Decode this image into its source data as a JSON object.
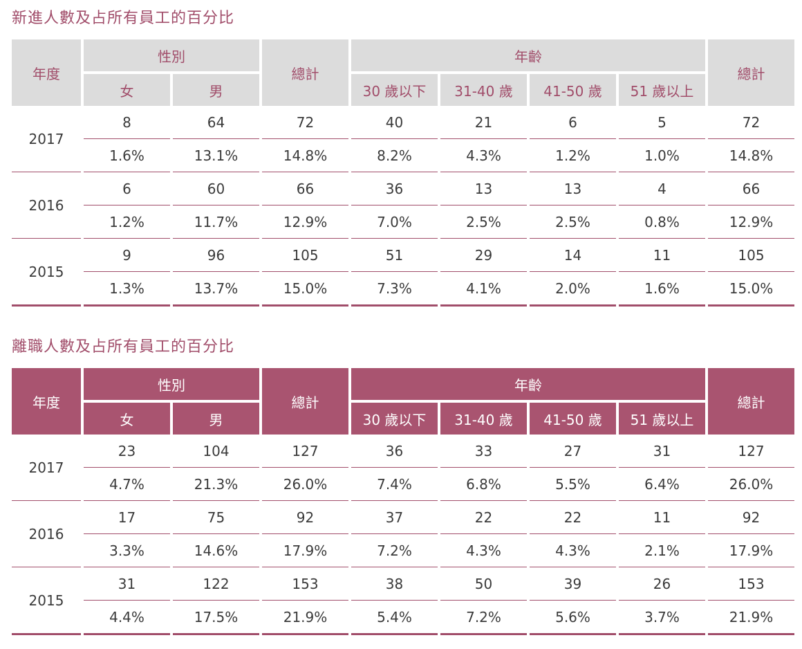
{
  "tables": [
    {
      "title": "新進人數及占所有員工的百分比",
      "headers": {
        "year": "年度",
        "gender": "性別",
        "female": "女",
        "male": "男",
        "total": "總計",
        "age": "年齡",
        "age_groups": [
          "30 歲以下",
          "31-40 歲",
          "41-50 歲",
          "51 歲以上"
        ]
      },
      "rows": [
        {
          "year": "2017",
          "counts": [
            "8",
            "64",
            "72",
            "40",
            "21",
            "6",
            "5",
            "72"
          ],
          "percents": [
            "1.6%",
            "13.1%",
            "14.8%",
            "8.2%",
            "4.3%",
            "1.2%",
            "1.0%",
            "14.8%"
          ]
        },
        {
          "year": "2016",
          "counts": [
            "6",
            "60",
            "66",
            "36",
            "13",
            "13",
            "4",
            "66"
          ],
          "percents": [
            "1.2%",
            "11.7%",
            "12.9%",
            "7.0%",
            "2.5%",
            "2.5%",
            "0.8%",
            "12.9%"
          ]
        },
        {
          "year": "2015",
          "counts": [
            "9",
            "96",
            "105",
            "51",
            "29",
            "14",
            "11",
            "105"
          ],
          "percents": [
            "1.3%",
            "13.7%",
            "15.0%",
            "7.3%",
            "4.1%",
            "2.0%",
            "1.6%",
            "15.0%"
          ]
        }
      ]
    },
    {
      "title": "離職人數及占所有員工的百分比",
      "headers": {
        "year": "年度",
        "gender": "性別",
        "female": "女",
        "male": "男",
        "total": "總計",
        "age": "年齡",
        "age_groups": [
          "30 歲以下",
          "31-40 歲",
          "41-50 歲",
          "51 歲以上"
        ]
      },
      "rows": [
        {
          "year": "2017",
          "counts": [
            "23",
            "104",
            "127",
            "36",
            "33",
            "27",
            "31",
            "127"
          ],
          "percents": [
            "4.7%",
            "21.3%",
            "26.0%",
            "7.4%",
            "6.8%",
            "5.5%",
            "6.4%",
            "26.0%"
          ]
        },
        {
          "year": "2016",
          "counts": [
            "17",
            "75",
            "92",
            "37",
            "22",
            "22",
            "11",
            "92"
          ],
          "percents": [
            "3.3%",
            "14.6%",
            "17.9%",
            "7.2%",
            "4.3%",
            "4.3%",
            "2.1%",
            "17.9%"
          ]
        },
        {
          "year": "2015",
          "counts": [
            "31",
            "122",
            "153",
            "38",
            "50",
            "39",
            "26",
            "153"
          ],
          "percents": [
            "4.4%",
            "17.5%",
            "21.9%",
            "5.4%",
            "7.2%",
            "5.6%",
            "3.7%",
            "21.9%"
          ]
        }
      ]
    }
  ]
}
